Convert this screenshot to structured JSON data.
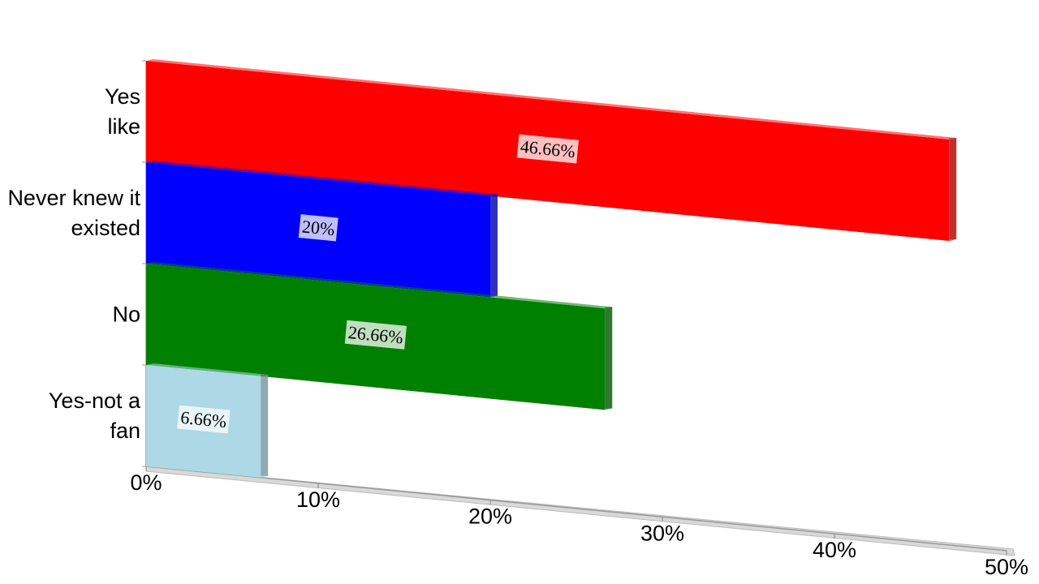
{
  "chart_data": {
    "type": "bar",
    "orientation": "horizontal",
    "categories": [
      "Yes like",
      "Never knew it existed",
      "No",
      "Yes-not a fan"
    ],
    "values": [
      46.66,
      20,
      26.66,
      6.66
    ],
    "value_labels": [
      "46.66%",
      "20%",
      "26.66%",
      "6.66%"
    ],
    "colors": [
      "#ff0000",
      "#0000ff",
      "#008000",
      "#add8e6"
    ],
    "xlim": [
      0,
      50
    ],
    "xticks": [
      {
        "value": 0,
        "label": "0%"
      },
      {
        "value": 10,
        "label": "10%"
      },
      {
        "value": 20,
        "label": "20%"
      },
      {
        "value": 30,
        "label": "30%"
      },
      {
        "value": 40,
        "label": "40%"
      },
      {
        "value": 50,
        "label": "50%"
      }
    ]
  }
}
